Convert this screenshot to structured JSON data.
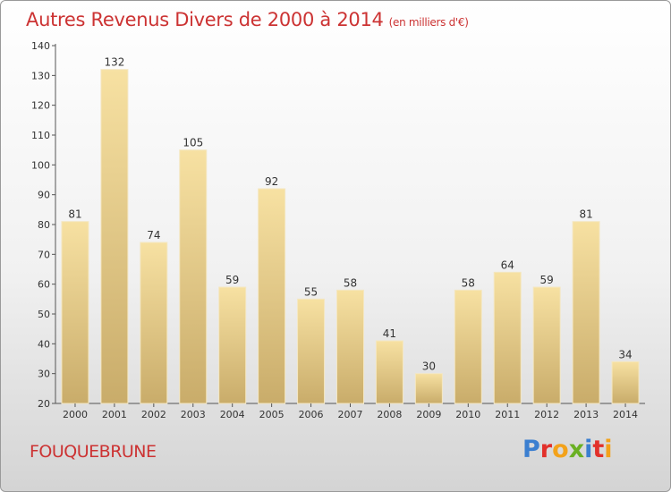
{
  "title": "Autres Revenus Divers de 2000 à 2014",
  "subtitle": "(en milliers d'€)",
  "commune": "FOUQUEBRUNE",
  "logo": {
    "letters": [
      "P",
      "r",
      "o",
      "x",
      "i",
      "t",
      "i"
    ],
    "colors": [
      "#3b7fd0",
      "#e2302a",
      "#f3a21a",
      "#6ab023",
      "#3b7fd0",
      "#e2302a",
      "#f3a21a"
    ]
  },
  "chart_data": {
    "type": "bar",
    "categories": [
      "2000",
      "2001",
      "2002",
      "2003",
      "2004",
      "2005",
      "2006",
      "2007",
      "2008",
      "2009",
      "2010",
      "2011",
      "2012",
      "2013",
      "2014"
    ],
    "values": [
      81,
      132,
      74,
      105,
      59,
      92,
      55,
      58,
      41,
      30,
      58,
      64,
      59,
      81,
      34
    ],
    "ylim": [
      20,
      140
    ],
    "yticks": [
      20,
      30,
      40,
      50,
      60,
      70,
      80,
      90,
      100,
      110,
      120,
      130,
      140
    ],
    "grid": false,
    "colors": {
      "bar_light": "#f7e1a2",
      "bar_dark": "#c9ac6a",
      "label": "#333333",
      "axis": "#555555"
    }
  }
}
